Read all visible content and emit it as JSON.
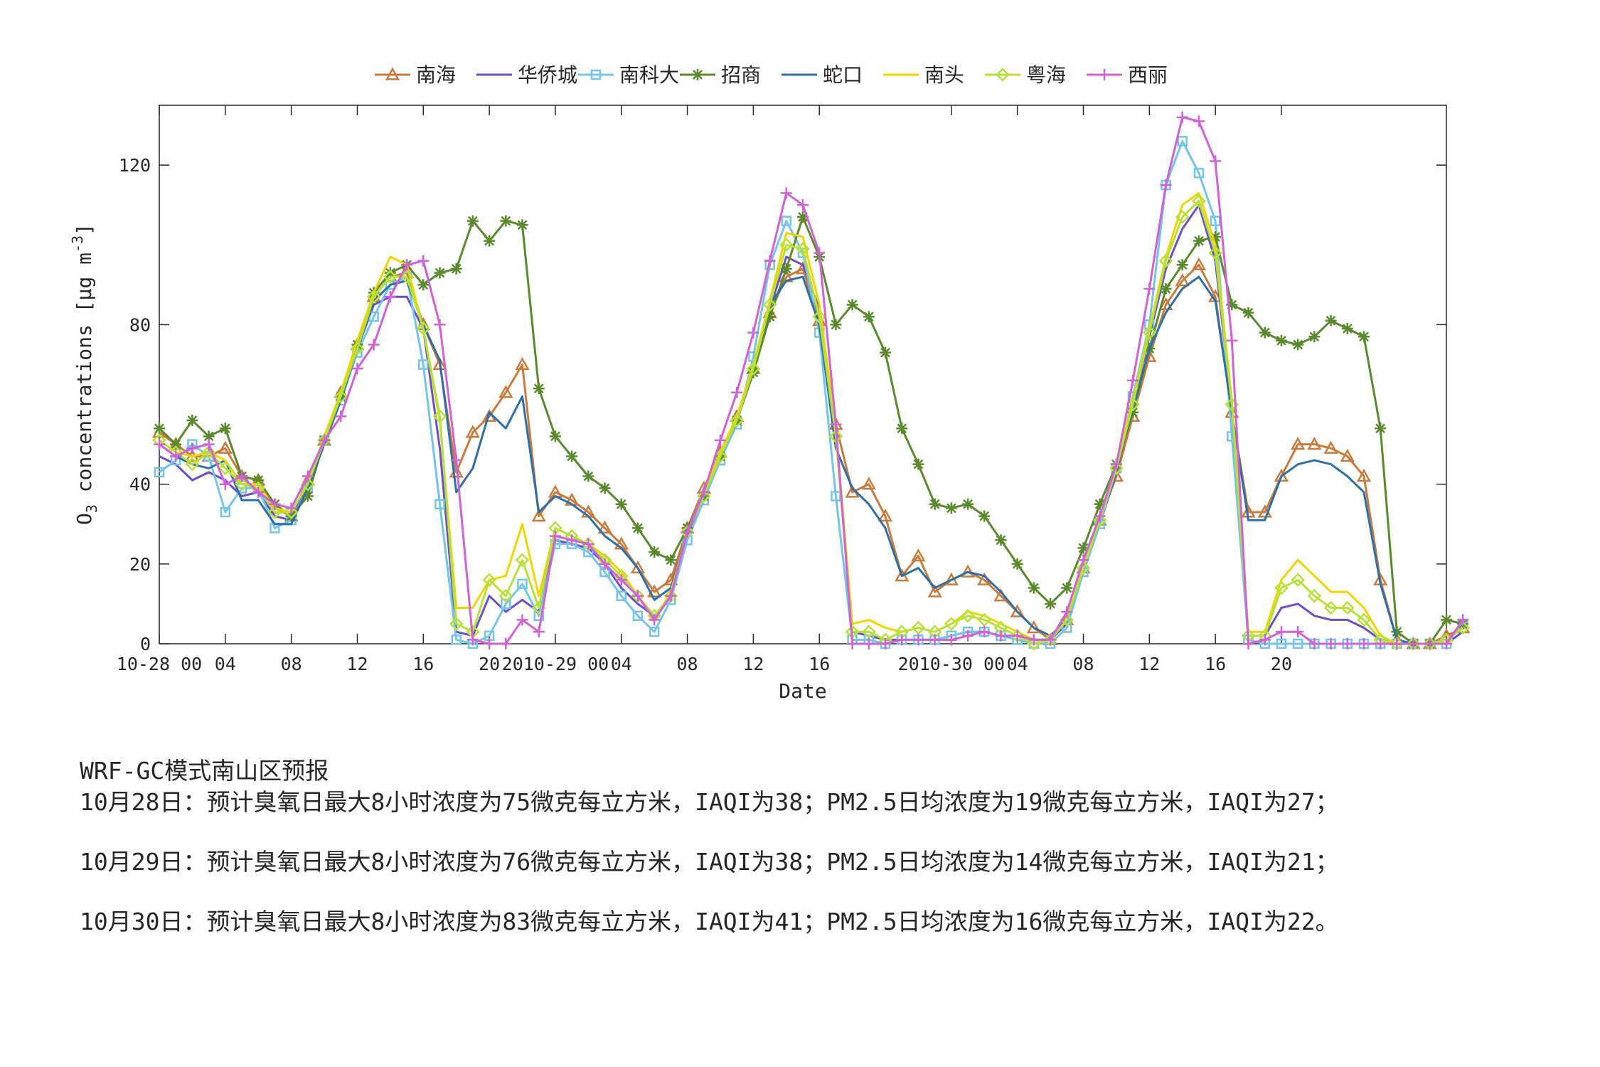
{
  "chart_data": {
    "type": "line",
    "title": "",
    "xlabel": "Date",
    "ylabel": "O3 concentrations [μg m-3]",
    "ylim": [
      0,
      135
    ],
    "yticks": [
      0,
      20,
      40,
      80,
      120
    ],
    "xticks": [
      {
        "x": 0,
        "label": "10-28 00"
      },
      {
        "x": 4,
        "label": "04"
      },
      {
        "x": 8,
        "label": "08"
      },
      {
        "x": 12,
        "label": "12"
      },
      {
        "x": 16,
        "label": "16"
      },
      {
        "x": 20,
        "label": "20"
      },
      {
        "x": 24,
        "label": "2010-29 00"
      },
      {
        "x": 28,
        "label": "04"
      },
      {
        "x": 32,
        "label": "08"
      },
      {
        "x": 36,
        "label": "12"
      },
      {
        "x": 40,
        "label": "16"
      },
      {
        "x": 48,
        "label": "2010-30 00"
      },
      {
        "x": 52,
        "label": "04"
      },
      {
        "x": 56,
        "label": "08"
      },
      {
        "x": 60,
        "label": "12"
      },
      {
        "x": 64,
        "label": "16"
      },
      {
        "x": 68,
        "label": "20"
      }
    ],
    "xlim": [
      0,
      78
    ],
    "grid": false,
    "legend_position": "top-center, horizontal",
    "series": [
      {
        "name": "南海",
        "color": "#c97b3e",
        "marker": "triangle",
        "values": [
          53,
          50,
          47,
          47,
          49,
          42,
          41,
          34,
          32,
          41,
          51,
          63,
          75,
          87,
          92,
          93,
          80,
          70,
          43,
          53,
          57,
          63,
          70,
          32,
          38,
          36,
          33,
          29,
          25,
          19,
          13,
          16,
          29,
          39,
          48,
          57,
          69,
          83,
          92,
          94,
          81,
          55,
          38,
          40,
          32,
          17,
          22,
          13,
          16,
          18,
          16,
          12,
          8,
          4,
          1,
          6,
          19,
          31,
          42,
          57,
          72,
          85,
          91,
          95,
          87,
          58,
          33,
          33,
          42,
          50,
          50,
          49,
          47,
          42,
          16,
          1,
          0,
          0,
          2,
          4
        ]
      },
      {
        "name": "华侨城",
        "color": "#6a4fc8",
        "marker": "none",
        "values": [
          47,
          45,
          41,
          43,
          41,
          37,
          38,
          32,
          31,
          40,
          51,
          62,
          74,
          85,
          87,
          87,
          79,
          49,
          3,
          2,
          12,
          8,
          11,
          8,
          26,
          25,
          24,
          20,
          14,
          10,
          7,
          12,
          27,
          37,
          47,
          56,
          68,
          84,
          97,
          95,
          84,
          53,
          3,
          2,
          1,
          1,
          1,
          1,
          2,
          3,
          3,
          2,
          2,
          1,
          1,
          5,
          18,
          30,
          43,
          60,
          77,
          94,
          104,
          110,
          96,
          59,
          2,
          2,
          9,
          10,
          7,
          6,
          6,
          4,
          1,
          0,
          0,
          0,
          0,
          3
        ]
      },
      {
        "name": "南科大",
        "color": "#74c4ea",
        "marker": "square",
        "values": [
          43,
          46,
          50,
          47,
          33,
          39,
          39,
          29,
          31,
          39,
          51,
          61,
          73,
          82,
          90,
          92,
          70,
          35,
          1,
          0,
          2,
          10,
          15,
          7,
          25,
          25,
          23,
          18,
          12,
          7,
          3,
          11,
          26,
          36,
          46,
          55,
          72,
          95,
          106,
          98,
          78,
          37,
          1,
          1,
          0,
          1,
          1,
          1,
          2,
          3,
          3,
          2,
          1,
          0,
          0,
          4,
          18,
          30,
          44,
          62,
          80,
          115,
          126,
          118,
          106,
          52,
          1,
          0,
          0,
          0,
          0,
          0,
          0,
          0,
          0,
          0,
          0,
          0,
          0,
          5
        ]
      },
      {
        "name": "招商",
        "color": "#5a8a2d",
        "marker": "star",
        "values": [
          54,
          50,
          56,
          52,
          54,
          42,
          41,
          35,
          32,
          37,
          51,
          62,
          75,
          88,
          93,
          95,
          90,
          93,
          94,
          106,
          101,
          106,
          105,
          64,
          52,
          47,
          42,
          39,
          35,
          29,
          23,
          21,
          29,
          37,
          47,
          56,
          68,
          82,
          94,
          107,
          97,
          80,
          85,
          82,
          73,
          54,
          45,
          35,
          34,
          35,
          32,
          26,
          20,
          14,
          10,
          14,
          24,
          35,
          45,
          58,
          74,
          89,
          95,
          101,
          102,
          85,
          83,
          78,
          76,
          75,
          77,
          81,
          79,
          77,
          54,
          3,
          0,
          0,
          6,
          5
        ]
      },
      {
        "name": "蛇口",
        "color": "#2f6ea6",
        "marker": "none",
        "values": [
          50,
          47,
          45,
          44,
          46,
          36,
          36,
          30,
          30,
          39,
          50,
          61,
          74,
          86,
          90,
          91,
          80,
          71,
          38,
          44,
          58,
          54,
          62,
          33,
          37,
          35,
          32,
          27,
          24,
          19,
          11,
          14,
          28,
          38,
          47,
          56,
          70,
          85,
          91,
          92,
          80,
          49,
          39,
          35,
          29,
          17,
          19,
          14,
          16,
          18,
          17,
          13,
          8,
          4,
          2,
          6,
          19,
          31,
          44,
          59,
          74,
          83,
          89,
          92,
          86,
          58,
          31,
          31,
          42,
          45,
          46,
          45,
          42,
          38,
          15,
          1,
          0,
          0,
          1,
          4
        ]
      },
      {
        "name": "南头",
        "color": "#f2d400",
        "marker": "none",
        "values": [
          51,
          48,
          47,
          48,
          46,
          40,
          40,
          34,
          33,
          40,
          52,
          63,
          76,
          88,
          97,
          95,
          79,
          56,
          9,
          9,
          16,
          17,
          30,
          12,
          29,
          27,
          25,
          22,
          18,
          12,
          6,
          13,
          28,
          38,
          48,
          57,
          70,
          86,
          103,
          102,
          85,
          54,
          5,
          6,
          4,
          3,
          4,
          3,
          5,
          8,
          7,
          5,
          3,
          1,
          1,
          6,
          20,
          32,
          45,
          61,
          79,
          97,
          110,
          113,
          100,
          61,
          3,
          3,
          16,
          21,
          17,
          13,
          13,
          9,
          2,
          0,
          0,
          0,
          1,
          4
        ]
      },
      {
        "name": "粤海",
        "color": "#b6e03a",
        "marker": "diamond",
        "values": [
          51,
          48,
          45,
          48,
          44,
          40,
          39,
          33,
          33,
          40,
          51,
          62,
          74,
          87,
          92,
          92,
          79,
          57,
          5,
          3,
          16,
          12,
          21,
          9,
          29,
          27,
          25,
          21,
          17,
          12,
          7,
          12,
          28,
          37,
          47,
          56,
          69,
          85,
          100,
          99,
          82,
          52,
          3,
          3,
          1,
          3,
          4,
          3,
          5,
          7,
          6,
          4,
          2,
          0,
          1,
          6,
          19,
          31,
          44,
          60,
          78,
          96,
          107,
          111,
          98,
          60,
          2,
          2,
          14,
          16,
          12,
          9,
          9,
          6,
          1,
          0,
          0,
          0,
          1,
          4
        ]
      },
      {
        "name": "西丽",
        "color": "#d062d8",
        "marker": "plus",
        "values": [
          50,
          47,
          49,
          50,
          40,
          42,
          38,
          35,
          34,
          42,
          51,
          57,
          69,
          75,
          87,
          95,
          96,
          80,
          46,
          1,
          0,
          0,
          6,
          3,
          27,
          26,
          25,
          20,
          16,
          12,
          6,
          12,
          28,
          38,
          51,
          63,
          78,
          96,
          113,
          110,
          98,
          55,
          0,
          0,
          0,
          1,
          1,
          1,
          1,
          2,
          3,
          2,
          2,
          1,
          1,
          8,
          21,
          32,
          45,
          66,
          89,
          115,
          132,
          131,
          121,
          76,
          0,
          1,
          3,
          3,
          0,
          0,
          0,
          0,
          0,
          0,
          0,
          0,
          0,
          6
        ]
      }
    ]
  },
  "notes": {
    "title": "WRF-GC模式南山区预报",
    "lines": [
      "10月28日：预计臭氧日最大8小时浓度为75微克每立方米，IAQI为38；PM2.5日均浓度为19微克每立方米，IAQI为27；",
      "10月29日：预计臭氧日最大8小时浓度为76微克每立方米，IAQI为38；PM2.5日均浓度为14微克每立方米，IAQI为21；",
      "10月30日：预计臭氧日最大8小时浓度为83微克每立方米，IAQI为41；PM2.5日均浓度为16微克每立方米，IAQI为22。"
    ]
  }
}
